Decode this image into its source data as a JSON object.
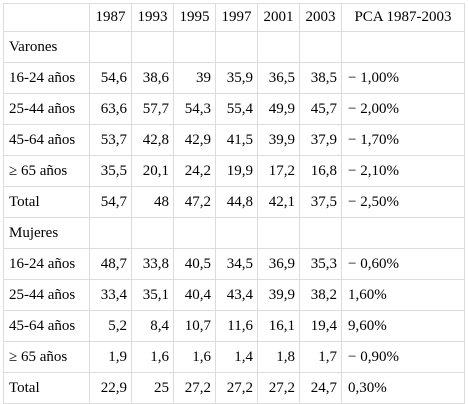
{
  "table": {
    "columns": [
      "",
      "1987",
      "1993",
      "1995",
      "1997",
      "2001",
      "2003",
      "PCA 1987-2003"
    ],
    "rows": [
      {
        "type": "section",
        "label": "Varones"
      },
      {
        "type": "data",
        "label": "16-24 años",
        "values": [
          "54,6",
          "38,6",
          "39",
          "35,9",
          "36,5",
          "38,5"
        ],
        "pca": "− 1,00%"
      },
      {
        "type": "data",
        "label": "25-44 años",
        "values": [
          "63,6",
          "57,7",
          "54,3",
          "55,4",
          "49,9",
          "45,7"
        ],
        "pca": "− 2,00%"
      },
      {
        "type": "data",
        "label": "45-64 años",
        "values": [
          "53,7",
          "42,8",
          "42,9",
          "41,5",
          "39,9",
          "37,9"
        ],
        "pca": "− 1,70%"
      },
      {
        "type": "data",
        "label": "≥ 65 años",
        "values": [
          "35,5",
          "20,1",
          "24,2",
          "19,9",
          "17,2",
          "16,8"
        ],
        "pca": "− 2,10%"
      },
      {
        "type": "data",
        "label": "Total",
        "values": [
          "54,7",
          "48",
          "47,2",
          "44,8",
          "42,1",
          "37,5"
        ],
        "pca": "− 2,50%"
      },
      {
        "type": "section",
        "label": "Mujeres"
      },
      {
        "type": "data",
        "label": "16-24 años",
        "values": [
          "48,7",
          "33,8",
          "40,5",
          "34,5",
          "36,9",
          "35,3"
        ],
        "pca": "− 0,60%"
      },
      {
        "type": "data",
        "label": "25-44 años",
        "values": [
          "33,4",
          "35,1",
          "40,4",
          "43,4",
          "39,9",
          "38,2"
        ],
        "pca": "1,60%"
      },
      {
        "type": "data",
        "label": "45-64 años",
        "values": [
          "5,2",
          "8,4",
          "10,7",
          "11,6",
          "16,1",
          "19,4"
        ],
        "pca": "9,60%"
      },
      {
        "type": "data",
        "label": "≥ 65 años",
        "values": [
          "1,9",
          "1,6",
          "1,6",
          "1,4",
          "1,8",
          "1,7"
        ],
        "pca": "− 0,90%"
      },
      {
        "type": "data",
        "label": "Total",
        "values": [
          "22,9",
          "25",
          "27,2",
          "27,2",
          "27,2",
          "24,7"
        ],
        "pca": "0,30%"
      }
    ]
  }
}
